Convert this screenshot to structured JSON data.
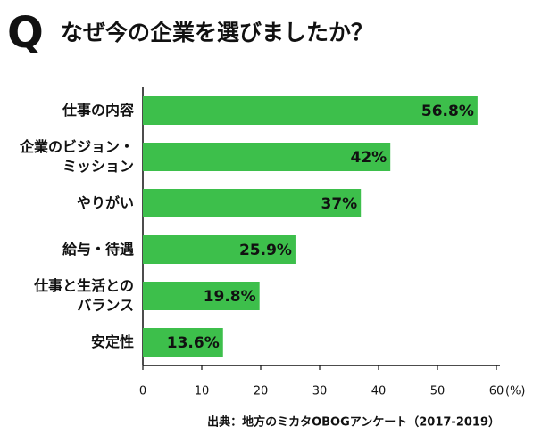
{
  "chart_data": {
    "type": "barh",
    "title": "なぜ今の企業を選びましたか？",
    "title_mark": "Q",
    "categories": [
      "仕事の内容",
      "企業のビジョン・\nミッション",
      "やりがい",
      "給与・待遇",
      "仕事と生活との\nバランス",
      "安定性"
    ],
    "values": [
      56.8,
      42,
      37,
      25.9,
      19.8,
      13.6
    ],
    "value_labels": [
      "56.8%",
      "42%",
      "37%",
      "25.9%",
      "19.8%",
      "13.6%"
    ],
    "color": "#3dbf4b",
    "xlim": [
      0,
      60
    ],
    "xticks": [
      0,
      10,
      20,
      30,
      40,
      50,
      60
    ],
    "xlabel": "(%)",
    "source": "出典：地方のミカタOBOGアンケート（2017-2019）"
  }
}
